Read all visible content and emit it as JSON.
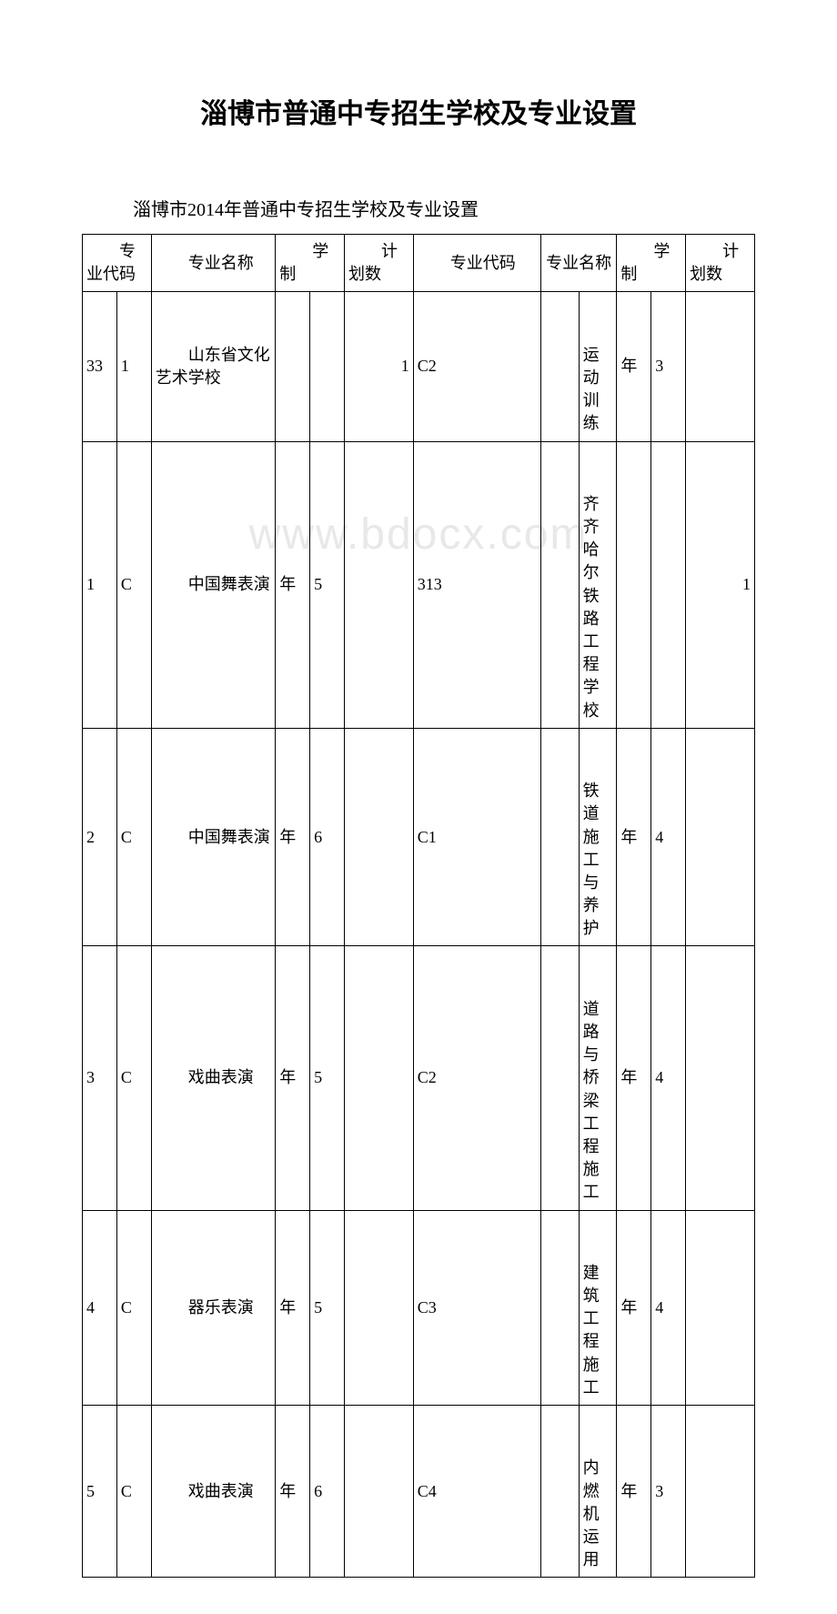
{
  "title": "淄博市普通中专招生学校及专业设置",
  "subtitle": "淄博市2014年普通中专招生学校及专业设置",
  "watermark": "www.bdocx.com",
  "headers": {
    "code_a": "专业代码",
    "name_a": "专业名称",
    "system_a": "学制",
    "plan_a": "计划数",
    "code_b": "专业代码",
    "name_b": "专业名称",
    "system_b": "学制",
    "plan_b": "计划数"
  },
  "rows": [
    {
      "a_code_l": "33",
      "a_code_r": "1",
      "a_name": "山东省文化艺术学校",
      "a_sys_l": "",
      "a_sys_r": "",
      "a_plan": "1",
      "b_code": "C2",
      "b_code_r": "",
      "b_name": "运动训练",
      "b_sys_l": "年",
      "b_sys_r": "3",
      "b_plan": ""
    },
    {
      "a_code_l": "1",
      "a_code_r": "C",
      "a_name": "中国舞表演",
      "a_sys_l": "年",
      "a_sys_r": "5",
      "a_plan": "",
      "b_code": "313",
      "b_code_r": "",
      "b_name": "齐齐哈尔铁路工程学校",
      "b_sys_l": "",
      "b_sys_r": "",
      "b_plan": "1"
    },
    {
      "a_code_l": "2",
      "a_code_r": "C",
      "a_name": "中国舞表演",
      "a_sys_l": "年",
      "a_sys_r": "6",
      "a_plan": "",
      "b_code": "C1",
      "b_code_r": "",
      "b_name": "铁道施工与养护",
      "b_sys_l": "年",
      "b_sys_r": "4",
      "b_plan": ""
    },
    {
      "a_code_l": "3",
      "a_code_r": "C",
      "a_name": "戏曲表演",
      "a_sys_l": "年",
      "a_sys_r": "5",
      "a_plan": "",
      "b_code": "C2",
      "b_code_r": "",
      "b_name": "道路与桥梁工程施工",
      "b_sys_l": "年",
      "b_sys_r": "4",
      "b_plan": ""
    },
    {
      "a_code_l": "4",
      "a_code_r": "C",
      "a_name": "器乐表演",
      "a_sys_l": "年",
      "a_sys_r": "5",
      "a_plan": "",
      "b_code": "C3",
      "b_code_r": "",
      "b_name": "建筑工程施工",
      "b_sys_l": "年",
      "b_sys_r": "4",
      "b_plan": ""
    },
    {
      "a_code_l": "5",
      "a_code_r": "C",
      "a_name": "戏曲表演",
      "a_sys_l": "年",
      "a_sys_r": "6",
      "a_plan": "",
      "b_code": "C4",
      "b_code_r": "",
      "b_name": "内燃机运用",
      "b_sys_l": "年",
      "b_sys_r": "3",
      "b_plan": ""
    }
  ]
}
